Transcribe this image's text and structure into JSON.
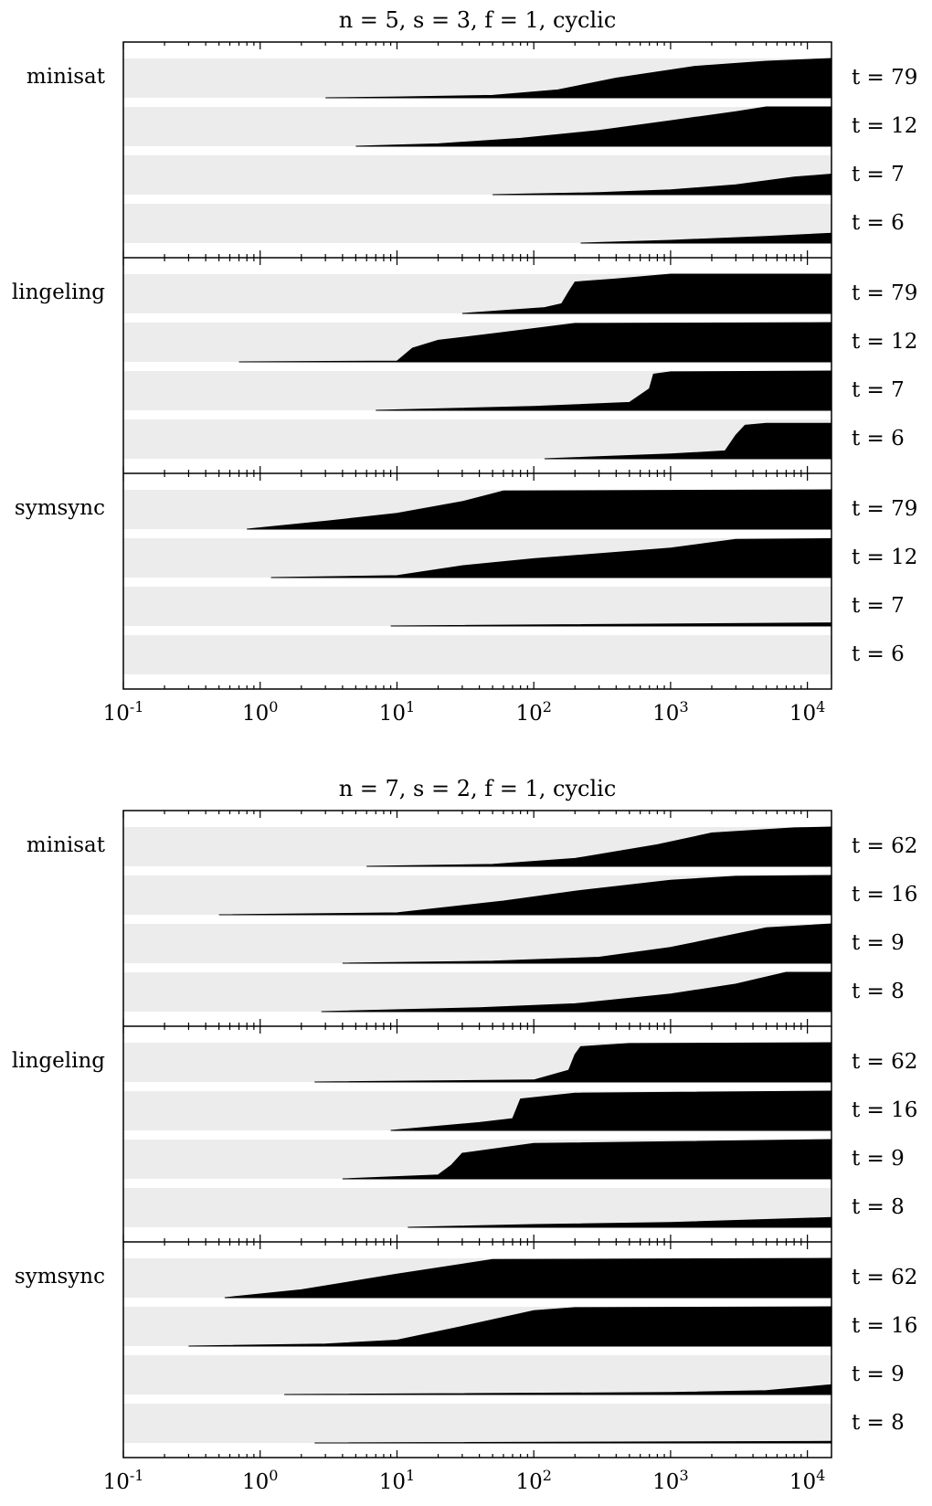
{
  "chart_data": [
    {
      "type": "area",
      "title": "n = 5, s = 3, f = 1, cyclic",
      "x_scale": "log",
      "xlim": [
        0.1,
        15000
      ],
      "x_ticks": [
        0.1,
        1,
        10,
        100,
        1000,
        10000
      ],
      "x_tick_labels": [
        {
          "base": "10",
          "exp": "-1"
        },
        {
          "base": "10",
          "exp": "0"
        },
        {
          "base": "10",
          "exp": "1"
        },
        {
          "base": "10",
          "exp": "2"
        },
        {
          "base": "10",
          "exp": "3"
        },
        {
          "base": "10",
          "exp": "4"
        }
      ],
      "ylim": [
        0,
        1
      ],
      "panels": [
        {
          "solver": "minisat",
          "series": [
            {
              "label": "t = 79",
              "points": [
                [
                  3,
                  0
                ],
                [
                  10,
                  0.02
                ],
                [
                  50,
                  0.06
                ],
                [
                  150,
                  0.2
                ],
                [
                  400,
                  0.5
                ],
                [
                  1500,
                  0.8
                ],
                [
                  5000,
                  0.93
                ],
                [
                  15000,
                  1.0
                ]
              ]
            },
            {
              "label": "t = 12",
              "points": [
                [
                  5,
                  0
                ],
                [
                  20,
                  0.06
                ],
                [
                  80,
                  0.2
                ],
                [
                  300,
                  0.4
                ],
                [
                  1000,
                  0.65
                ],
                [
                  3000,
                  0.88
                ],
                [
                  5000,
                  1.0
                ],
                [
                  15000,
                  1.0
                ]
              ]
            },
            {
              "label": "t = 7",
              "points": [
                [
                  50,
                  0
                ],
                [
                  300,
                  0.05
                ],
                [
                  1000,
                  0.12
                ],
                [
                  3000,
                  0.25
                ],
                [
                  8000,
                  0.45
                ],
                [
                  15000,
                  0.52
                ]
              ]
            },
            {
              "label": "t = 6",
              "points": [
                [
                  220,
                  0
                ],
                [
                  1000,
                  0.07
                ],
                [
                  5000,
                  0.17
                ],
                [
                  15000,
                  0.25
                ]
              ]
            }
          ]
        },
        {
          "solver": "lingeling",
          "series": [
            {
              "label": "t = 79",
              "points": [
                [
                  30,
                  0
                ],
                [
                  120,
                  0.15
                ],
                [
                  160,
                  0.25
                ],
                [
                  180,
                  0.55
                ],
                [
                  200,
                  0.8
                ],
                [
                  400,
                  0.88
                ],
                [
                  1000,
                  1.0
                ],
                [
                  15000,
                  1.0
                ]
              ]
            },
            {
              "label": "t = 12",
              "points": [
                [
                  0.7,
                  0
                ],
                [
                  10,
                  0.02
                ],
                [
                  13,
                  0.35
                ],
                [
                  20,
                  0.55
                ],
                [
                  60,
                  0.75
                ],
                [
                  200,
                  0.98
                ],
                [
                  15000,
                  1.0
                ]
              ]
            },
            {
              "label": "t = 7",
              "points": [
                [
                  7,
                  0
                ],
                [
                  100,
                  0.1
                ],
                [
                  500,
                  0.2
                ],
                [
                  700,
                  0.55
                ],
                [
                  750,
                  0.92
                ],
                [
                  1000,
                  0.98
                ],
                [
                  15000,
                  1.0
                ]
              ]
            },
            {
              "label": "t = 6",
              "points": [
                [
                  120,
                  0
                ],
                [
                  1000,
                  0.12
                ],
                [
                  2500,
                  0.2
                ],
                [
                  3000,
                  0.6
                ],
                [
                  3500,
                  0.85
                ],
                [
                  5000,
                  0.9
                ],
                [
                  15000,
                  0.9
                ]
              ]
            }
          ]
        },
        {
          "solver": "symsync",
          "series": [
            {
              "label": "t = 79",
              "points": [
                [
                  0.8,
                  0
                ],
                [
                  3,
                  0.2
                ],
                [
                  10,
                  0.4
                ],
                [
                  30,
                  0.7
                ],
                [
                  60,
                  0.97
                ],
                [
                  15000,
                  1.0
                ]
              ]
            },
            {
              "label": "t = 12",
              "points": [
                [
                  1.2,
                  0
                ],
                [
                  10,
                  0.05
                ],
                [
                  30,
                  0.3
                ],
                [
                  100,
                  0.48
                ],
                [
                  1000,
                  0.75
                ],
                [
                  3000,
                  0.97
                ],
                [
                  15000,
                  0.99
                ]
              ]
            },
            {
              "label": "t = 7",
              "points": [
                [
                  9,
                  0
                ],
                [
                  15000,
                  0.08
                ]
              ]
            },
            {
              "label": "t = 6",
              "points": []
            }
          ]
        }
      ]
    },
    {
      "type": "area",
      "title": "n = 7, s = 2, f = 1, cyclic",
      "x_scale": "log",
      "xlim": [
        0.1,
        15000
      ],
      "x_ticks": [
        0.1,
        1,
        10,
        100,
        1000,
        10000
      ],
      "x_tick_labels": [
        {
          "base": "10",
          "exp": "-1"
        },
        {
          "base": "10",
          "exp": "0"
        },
        {
          "base": "10",
          "exp": "1"
        },
        {
          "base": "10",
          "exp": "2"
        },
        {
          "base": "10",
          "exp": "3"
        },
        {
          "base": "10",
          "exp": "4"
        }
      ],
      "ylim": [
        0,
        1
      ],
      "panels": [
        {
          "solver": "minisat",
          "series": [
            {
              "label": "t = 62",
              "points": [
                [
                  6,
                  0
                ],
                [
                  50,
                  0.05
                ],
                [
                  200,
                  0.2
                ],
                [
                  800,
                  0.55
                ],
                [
                  2000,
                  0.85
                ],
                [
                  8000,
                  0.98
                ],
                [
                  15000,
                  1.0
                ]
              ]
            },
            {
              "label": "t = 16",
              "points": [
                [
                  0.5,
                  0
                ],
                [
                  10,
                  0.05
                ],
                [
                  60,
                  0.35
                ],
                [
                  200,
                  0.6
                ],
                [
                  1000,
                  0.88
                ],
                [
                  3000,
                  0.98
                ],
                [
                  15000,
                  1.0
                ]
              ]
            },
            {
              "label": "t = 9",
              "points": [
                [
                  4,
                  0
                ],
                [
                  50,
                  0.05
                ],
                [
                  300,
                  0.15
                ],
                [
                  1000,
                  0.4
                ],
                [
                  5000,
                  0.9
                ],
                [
                  15000,
                  1.0
                ]
              ]
            },
            {
              "label": "t = 8",
              "points": [
                [
                  2.8,
                  0
                ],
                [
                  40,
                  0.1
                ],
                [
                  200,
                  0.2
                ],
                [
                  1000,
                  0.45
                ],
                [
                  3000,
                  0.7
                ],
                [
                  7000,
                  1.0
                ],
                [
                  15000,
                  1.0
                ]
              ]
            }
          ]
        },
        {
          "solver": "lingeling",
          "series": [
            {
              "label": "t = 62",
              "points": [
                [
                  2.5,
                  0
                ],
                [
                  100,
                  0.05
                ],
                [
                  180,
                  0.3
                ],
                [
                  200,
                  0.7
                ],
                [
                  220,
                  0.9
                ],
                [
                  500,
                  0.98
                ],
                [
                  15000,
                  1.0
                ]
              ]
            },
            {
              "label": "t = 16",
              "points": [
                [
                  9,
                  0
                ],
                [
                  40,
                  0.2
                ],
                [
                  70,
                  0.3
                ],
                [
                  80,
                  0.8
                ],
                [
                  200,
                  0.95
                ],
                [
                  15000,
                  1.0
                ]
              ]
            },
            {
              "label": "t = 9",
              "points": [
                [
                  4,
                  0
                ],
                [
                  20,
                  0.1
                ],
                [
                  25,
                  0.35
                ],
                [
                  30,
                  0.65
                ],
                [
                  100,
                  0.9
                ],
                [
                  15000,
                  1.0
                ]
              ]
            },
            {
              "label": "t = 8",
              "points": [
                [
                  12,
                  0
                ],
                [
                  100,
                  0.07
                ],
                [
                  1000,
                  0.12
                ],
                [
                  15000,
                  0.25
                ]
              ]
            }
          ]
        },
        {
          "solver": "symsync",
          "series": [
            {
              "label": "t = 62",
              "points": [
                [
                  0.55,
                  0
                ],
                [
                  2,
                  0.2
                ],
                [
                  10,
                  0.6
                ],
                [
                  50,
                  0.97
                ],
                [
                  15000,
                  1.0
                ]
              ]
            },
            {
              "label": "t = 16",
              "points": [
                [
                  0.3,
                  0
                ],
                [
                  3,
                  0.05
                ],
                [
                  10,
                  0.15
                ],
                [
                  30,
                  0.5
                ],
                [
                  100,
                  0.9
                ],
                [
                  200,
                  0.98
                ],
                [
                  15000,
                  1.0
                ]
              ]
            },
            {
              "label": "t = 9",
              "points": [
                [
                  1.5,
                  0
                ],
                [
                  1000,
                  0.05
                ],
                [
                  5000,
                  0.1
                ],
                [
                  15000,
                  0.25
                ]
              ]
            },
            {
              "label": "t = 8",
              "points": [
                [
                  2.5,
                  0
                ],
                [
                  15000,
                  0.04
                ]
              ]
            }
          ]
        }
      ]
    }
  ]
}
